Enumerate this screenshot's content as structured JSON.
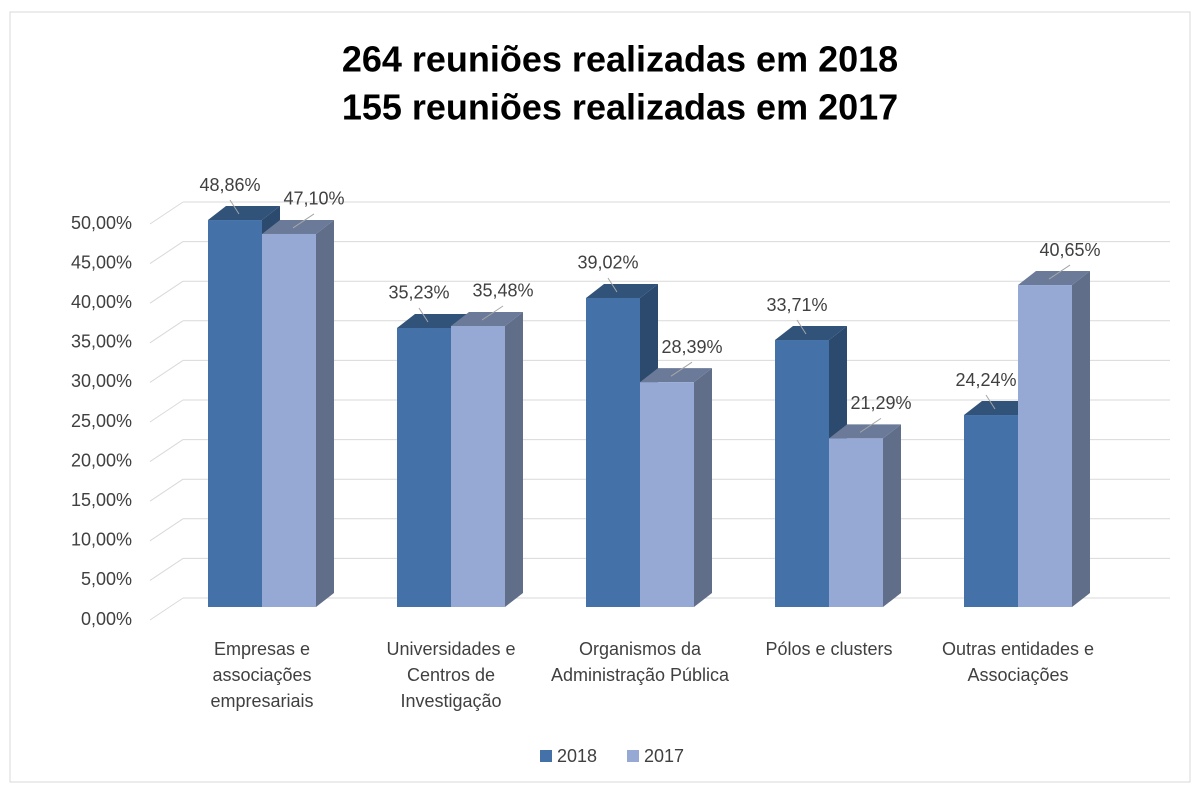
{
  "chart_data": {
    "type": "bar3d",
    "title": [
      "264 reuniões realizadas em 2018",
      "155 reuniões realizadas em 2017"
    ],
    "categories": [
      "Empresas e associações empresariais",
      "Universidades e Centros de Investigação",
      "Organismos da Administração Pública",
      "Pólos e clusters",
      "Outras entidades e Associações"
    ],
    "series": [
      {
        "name": "2018",
        "color": "#4472a8",
        "values": [
          48.86,
          35.23,
          39.02,
          33.71,
          24.24
        ],
        "value_labels": [
          "48,86%",
          "35,23%",
          "39,02%",
          "33,71%",
          "24,24%"
        ]
      },
      {
        "name": "2017",
        "color": "#95a9d4",
        "values": [
          47.1,
          35.48,
          28.39,
          21.29,
          40.65
        ],
        "value_labels": [
          "47,10%",
          "35,48%",
          "28,39%",
          "21,29%",
          "40,65%"
        ]
      }
    ],
    "ylim": [
      0,
      50
    ],
    "yticks": [
      {
        "value": 0,
        "label": "0,00%"
      },
      {
        "value": 5,
        "label": "5,00%"
      },
      {
        "value": 10,
        "label": "10,00%"
      },
      {
        "value": 15,
        "label": "15,00%"
      },
      {
        "value": 20,
        "label": "20,00%"
      },
      {
        "value": 25,
        "label": "25,00%"
      },
      {
        "value": 30,
        "label": "30,00%"
      },
      {
        "value": 35,
        "label": "35,00%"
      },
      {
        "value": 40,
        "label": "40,00%"
      },
      {
        "value": 45,
        "label": "45,00%"
      },
      {
        "value": 50,
        "label": "50,00%"
      }
    ],
    "grid": true,
    "legend": "bottom"
  }
}
